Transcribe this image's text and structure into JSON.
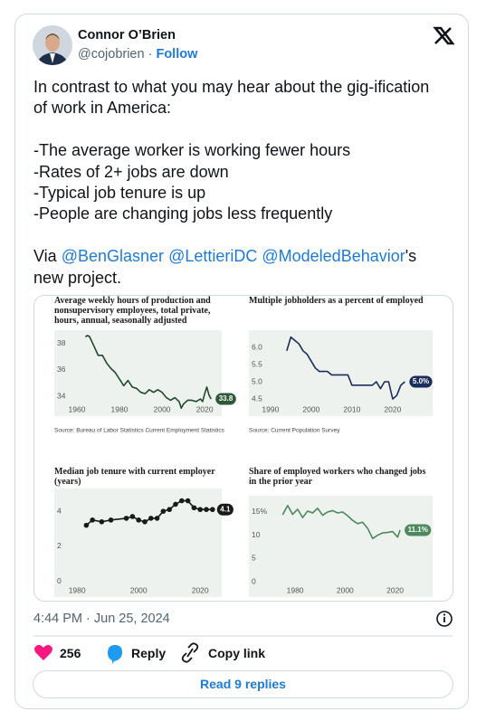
{
  "author": {
    "name": "Connor O’Brien",
    "handle": "@cojobrien",
    "separator": "·",
    "follow": "Follow"
  },
  "text": {
    "intro": "In contrast to what you may hear about the gig-ification of work in America:",
    "points": [
      "-The average worker is working fewer hours",
      "-Rates of 2+ jobs are down",
      "-Typical job tenure is up",
      "-People are changing jobs less frequently"
    ],
    "via": {
      "prefix": "Via",
      "mentions": [
        "@BenGlasner",
        "@LettieriDC",
        "@ModeledBehavior"
      ],
      "suffix": "'s new project."
    }
  },
  "chart_data": [
    {
      "type": "line",
      "title": "Average weekly hours of production and nonsupervisory employees, total private, hours, annual, seasonally adjusted",
      "x": [
        1964,
        1965,
        1966,
        1968,
        1970,
        1972,
        1974,
        1976,
        1978,
        1980,
        1982,
        1984,
        1986,
        1988,
        1990,
        1992,
        1994,
        1996,
        1998,
        2000,
        2002,
        2004,
        2006,
        2008,
        2009,
        2010,
        2012,
        2014,
        2016,
        2018,
        2019,
        2020,
        2021,
        2022,
        2023
      ],
      "values": [
        38.5,
        38.6,
        38.5,
        37.8,
        37.1,
        37.1,
        36.5,
        36.1,
        35.8,
        35.3,
        34.8,
        35.2,
        34.7,
        34.6,
        34.3,
        34.2,
        34.5,
        34.3,
        34.5,
        34.3,
        33.9,
        33.7,
        33.9,
        33.6,
        33.1,
        33.4,
        33.7,
        33.7,
        33.6,
        33.8,
        33.6,
        34.2,
        34.7,
        34.1,
        33.8
      ],
      "value_labels": [
        null,
        null,
        null,
        null,
        null,
        null,
        null,
        null,
        null,
        null,
        null,
        null,
        null,
        null,
        null,
        null,
        null,
        null,
        null,
        null,
        null,
        null,
        null,
        null,
        null,
        null,
        null,
        null,
        null,
        null,
        null,
        null,
        null,
        null,
        "33.8"
      ],
      "color": "#1f4a2c",
      "label_color": "#2d5a38",
      "markers": false,
      "xlim": [
        1949.4,
        2028
      ],
      "ylim": [
        32.5,
        39
      ],
      "xticks": [
        1960,
        1980,
        2000,
        2020
      ],
      "yticks": [
        34,
        36,
        38
      ],
      "source": "Source: Bureau of Labor Statistics Current Employment Statistics"
    },
    {
      "type": "line",
      "title": "Multiple jobholders as a percent of employed",
      "x": [
        1994,
        1995,
        1996,
        1997,
        1998,
        1999,
        2000,
        2001,
        2002,
        2003,
        2004,
        2005,
        2006,
        2007,
        2008,
        2009,
        2010,
        2011,
        2012,
        2013,
        2014,
        2015,
        2016,
        2017,
        2018,
        2019,
        2020,
        2021,
        2022,
        2023
      ],
      "values": [
        5.9,
        6.3,
        6.2,
        6.1,
        5.9,
        5.8,
        5.6,
        5.4,
        5.3,
        5.3,
        5.3,
        5.2,
        5.2,
        5.2,
        5.2,
        5.2,
        4.9,
        4.9,
        4.9,
        4.9,
        4.9,
        4.9,
        5.0,
        4.8,
        5.0,
        5.0,
        4.5,
        4.6,
        4.9,
        5.0
      ],
      "value_labels": [
        null,
        null,
        null,
        null,
        null,
        null,
        null,
        null,
        null,
        null,
        null,
        null,
        null,
        null,
        null,
        null,
        null,
        null,
        null,
        null,
        null,
        null,
        null,
        null,
        null,
        null,
        null,
        null,
        null,
        "5.0%"
      ],
      "color": "#1b2d5c",
      "label_color": "#1b2d5c",
      "markers": false,
      "xlim": [
        1984.7,
        2029.8
      ],
      "ylim": [
        4.0,
        6.5
      ],
      "xticks": [
        1990,
        2000,
        2010,
        2020
      ],
      "yticks": [
        4.5,
        {
          "value": 5,
          "label": "5.0"
        },
        5.5,
        {
          "value": 6,
          "label": "6.0"
        }
      ],
      "source": "Source: Current Population Survey"
    },
    {
      "type": "line",
      "title": "Median job tenure with current employer (years)",
      "x": [
        1983,
        1985,
        1988,
        1991,
        1996,
        1998,
        2000,
        2002,
        2004,
        2006,
        2008,
        2010,
        2012,
        2014,
        2016,
        2018,
        2020,
        2022,
        2024
      ],
      "values": [
        3.2,
        3.5,
        3.4,
        3.5,
        3.6,
        3.7,
        3.5,
        3.4,
        3.6,
        3.6,
        4.0,
        4.1,
        4.4,
        4.6,
        4.6,
        4.2,
        4.1,
        4.1,
        4.1
      ],
      "value_labels": [
        null,
        null,
        null,
        null,
        null,
        null,
        null,
        null,
        null,
        null,
        null,
        null,
        null,
        null,
        null,
        null,
        null,
        null,
        "4.1"
      ],
      "color": "#1a1a1a",
      "label_color": "#1a1a1a",
      "markers": true,
      "xlim": [
        1972.6,
        2027
      ],
      "ylim": [
        -0.9,
        5.3
      ],
      "xticks": [
        1980,
        2000,
        2020
      ],
      "yticks": [
        0,
        2,
        4
      ]
    },
    {
      "type": "line",
      "title": "Share of employed workers who changed jobs in the prior year",
      "x": [
        1975,
        1977,
        1979,
        1981,
        1983,
        1985,
        1987,
        1989,
        1991,
        1993,
        1995,
        1997,
        1999,
        2001,
        2003,
        2005,
        2007,
        2009,
        2011,
        2013,
        2015,
        2017,
        2019,
        2021,
        2022
      ],
      "values": [
        14.4,
        16.4,
        14.5,
        15.6,
        13.8,
        15.2,
        14.8,
        15.8,
        14.3,
        15.0,
        15.3,
        14.8,
        15.0,
        14.2,
        13.2,
        12.5,
        12.8,
        11.5,
        9.3,
        10.0,
        10.5,
        10.6,
        10.8,
        9.6,
        11.1
      ],
      "value_labels": [
        null,
        null,
        null,
        null,
        null,
        null,
        null,
        null,
        null,
        null,
        null,
        null,
        null,
        null,
        null,
        null,
        null,
        null,
        null,
        null,
        null,
        null,
        null,
        null,
        "11.1%"
      ],
      "color": "#4a8a5c",
      "label_color": "#4a8a5c",
      "markers": false,
      "xlim": [
        1961.5,
        2035
      ],
      "ylim": [
        -3.3,
        18.5
      ],
      "xticks": [
        1980,
        2000,
        2020
      ],
      "yticks": [
        0,
        5,
        10,
        {
          "value": 15,
          "label": "15%"
        }
      ]
    }
  ],
  "timestamp": "4:44 PM · Jun 25, 2024",
  "likes": 256,
  "actions": {
    "reply": "Reply",
    "copy_link": "Copy link"
  },
  "read_replies": "Read 9 replies"
}
